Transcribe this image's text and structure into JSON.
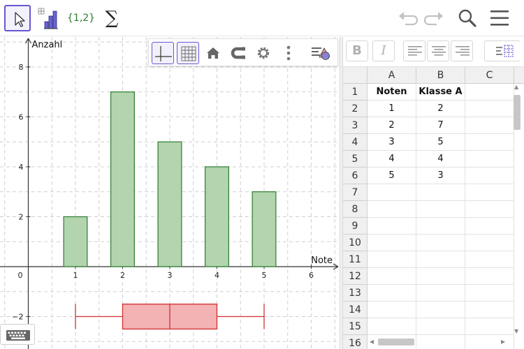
{
  "toolbar": {
    "tools": [
      {
        "name": "move-tool",
        "icon": "cursor-arrow-icon",
        "active": true
      },
      {
        "name": "bar-chart-tool",
        "icon": "bar-chart-icon",
        "active": false
      },
      {
        "name": "list-tool",
        "label": "{1,2}",
        "active": false
      },
      {
        "name": "sum-tool",
        "label": "∑",
        "active": false
      }
    ],
    "right_icons": [
      "undo-icon",
      "redo-icon",
      "search-icon",
      "menu-icon"
    ]
  },
  "graphics": {
    "style_bar_icons": [
      "axes-icon",
      "grid-icon",
      "home-icon",
      "magnet-icon",
      "gear-icon",
      "more-vertical-icon",
      "style-bar-toggle-icon"
    ],
    "axis_labels": {
      "x": "Note",
      "y": "Anzahl"
    },
    "x_ticks": [
      "1",
      "2",
      "3",
      "4",
      "5",
      "6"
    ],
    "y_ticks": [
      "8",
      "6",
      "4",
      "2",
      "−2"
    ],
    "origin_label": "0"
  },
  "chart_data": {
    "type": "bar",
    "categories": [
      1,
      2,
      3,
      4,
      5
    ],
    "values": [
      2,
      7,
      5,
      4,
      3
    ],
    "xlabel": "Note",
    "ylabel": "Anzahl",
    "xlim": [
      -0.6,
      6.6
    ],
    "ylim": [
      -3.3,
      9.2
    ],
    "bar_width": 0.5,
    "bar_color": "#b2d4ae",
    "bar_stroke": "#2e7d32",
    "grid": true,
    "boxplot": {
      "min": 1,
      "q1": 2,
      "median": 3,
      "q3": 4,
      "max": 5,
      "y_center": -2,
      "height": 1,
      "fill": "#f3b2b4",
      "stroke": "#d32f2f"
    }
  },
  "spreadsheet": {
    "format_buttons": [
      {
        "name": "bold-button",
        "label": "B"
      },
      {
        "name": "italic-button",
        "label": "I"
      }
    ],
    "align_icons": [
      "align-left-icon",
      "align-center-icon",
      "align-right-icon",
      "table-style-icon"
    ],
    "columns": [
      "A",
      "B",
      "C"
    ],
    "rows": [
      {
        "num": "1",
        "A": "Noten",
        "B": "Klasse A",
        "C": "",
        "header": true
      },
      {
        "num": "2",
        "A": "1",
        "B": "2",
        "C": ""
      },
      {
        "num": "3",
        "A": "2",
        "B": "7",
        "C": ""
      },
      {
        "num": "4",
        "A": "3",
        "B": "5",
        "C": ""
      },
      {
        "num": "5",
        "A": "4",
        "B": "4",
        "C": ""
      },
      {
        "num": "6",
        "A": "5",
        "B": "3",
        "C": ""
      },
      {
        "num": "7",
        "A": "",
        "B": "",
        "C": ""
      },
      {
        "num": "8",
        "A": "",
        "B": "",
        "C": ""
      },
      {
        "num": "9",
        "A": "",
        "B": "",
        "C": ""
      },
      {
        "num": "10",
        "A": "",
        "B": "",
        "C": ""
      },
      {
        "num": "11",
        "A": "",
        "B": "",
        "C": ""
      },
      {
        "num": "12",
        "A": "",
        "B": "",
        "C": ""
      },
      {
        "num": "13",
        "A": "",
        "B": "",
        "C": ""
      },
      {
        "num": "14",
        "A": "",
        "B": "",
        "C": ""
      },
      {
        "num": "15",
        "A": "",
        "B": "",
        "C": ""
      },
      {
        "num": "16",
        "A": "",
        "B": "",
        "C": ""
      }
    ]
  },
  "keyboard": {
    "icon": "keyboard-icon"
  }
}
